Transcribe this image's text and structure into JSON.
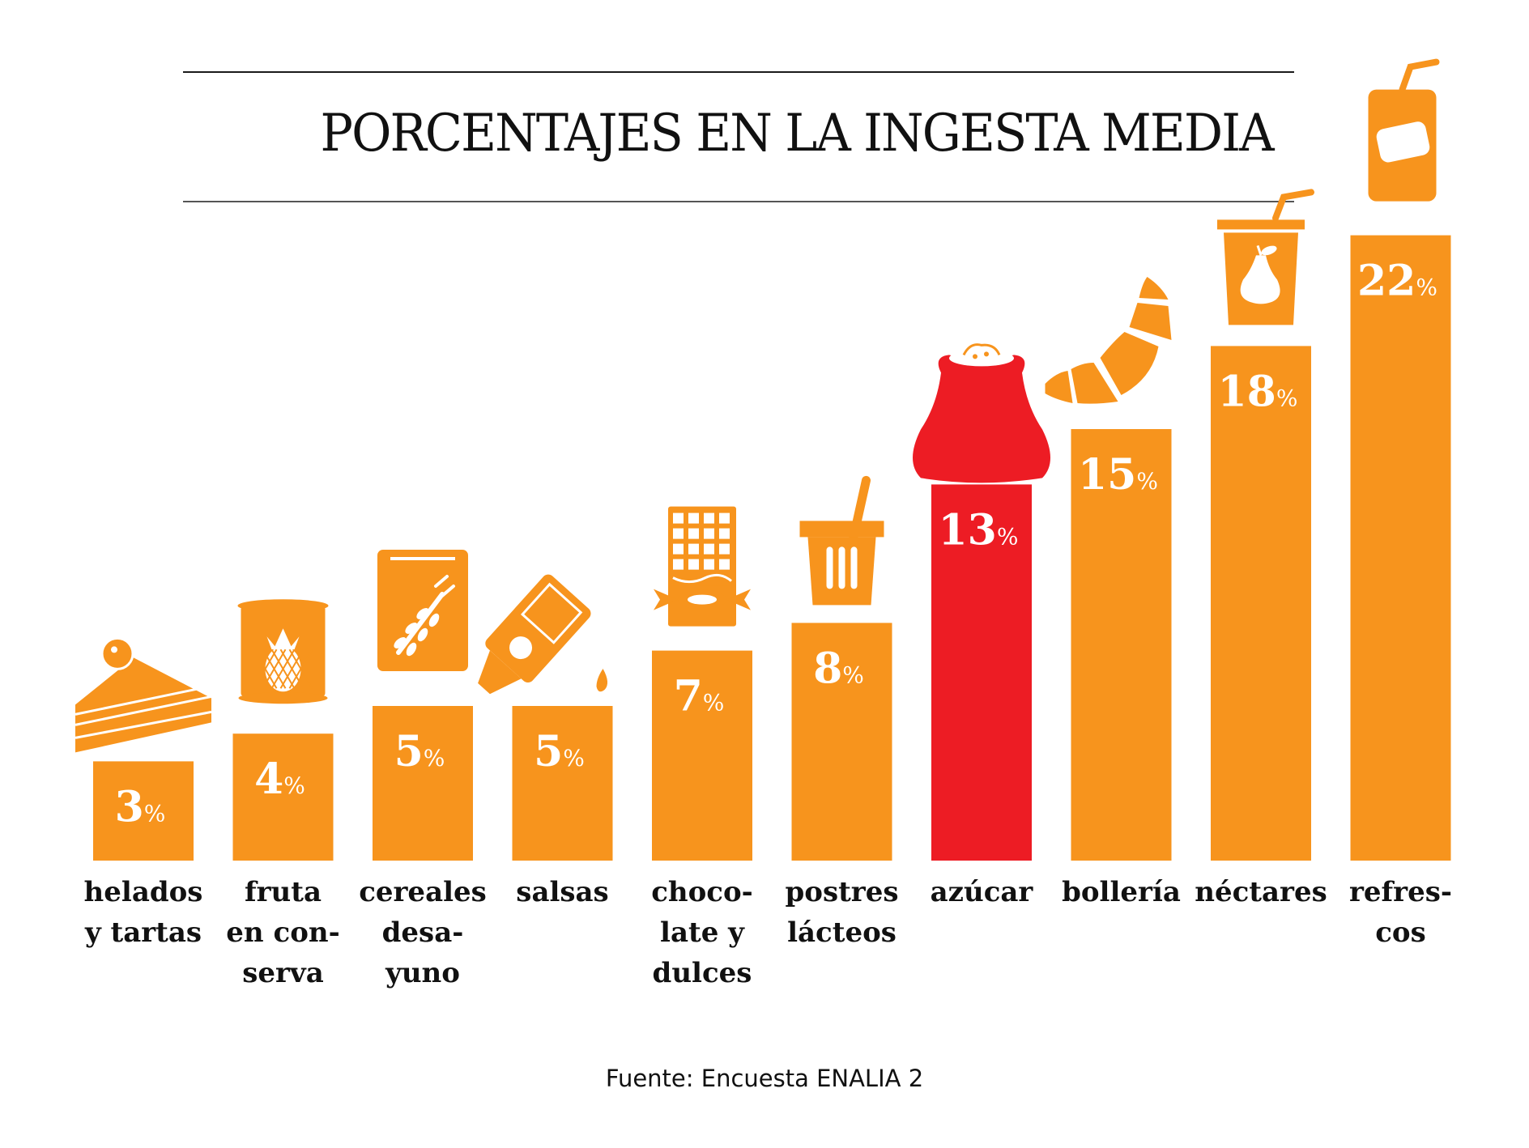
{
  "chart_data": {
    "type": "bar",
    "title": "PORCENTAJES EN LA INGESTA MEDIA",
    "xlabel": "",
    "ylabel": "",
    "ylim": [
      0,
      22
    ],
    "grid": false,
    "categories": [
      [
        "helados",
        "y tartas"
      ],
      [
        "fruta",
        "en con-",
        "serva"
      ],
      [
        "cereales",
        "desa-",
        "yuno"
      ],
      [
        "salsas"
      ],
      [
        "choco-",
        "late y",
        "dulces"
      ],
      [
        "postres",
        "lácteos"
      ],
      [
        "azúcar"
      ],
      [
        "bollería"
      ],
      [
        "néctares"
      ],
      [
        "refres-",
        "cos"
      ]
    ],
    "values": [
      3,
      4,
      5,
      5,
      7,
      8,
      13,
      15,
      18,
      22
    ],
    "value_labels": [
      "3",
      "4",
      "5",
      "5",
      "7",
      "8",
      "13",
      "15",
      "18",
      "22"
    ],
    "unit": "%",
    "icons": [
      "cake-slice-icon",
      "canned-pineapple-icon",
      "cereal-box-icon",
      "sauce-bottle-icon",
      "chocolate-candy-icon",
      "dessert-cup-icon",
      "sugar-sack-icon",
      "croissant-icon",
      "juice-cup-icon",
      "soda-can-icon"
    ],
    "highlight_index": 6,
    "colors": {
      "bar": "#F7941D",
      "highlight": "#ED1C24",
      "text": "#111111",
      "label": "#ffffff"
    }
  },
  "header": {
    "title": "PORCENTAJES EN LA INGESTA MEDIA"
  },
  "footer": {
    "source": "Fuente: Encuesta ENALIA 2"
  }
}
